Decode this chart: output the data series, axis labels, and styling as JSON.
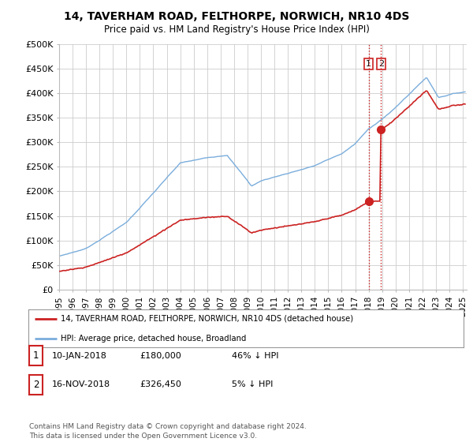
{
  "title": "14, TAVERHAM ROAD, FELTHORPE, NORWICH, NR10 4DS",
  "subtitle": "Price paid vs. HM Land Registry's House Price Index (HPI)",
  "ylabel_ticks": [
    "£0",
    "£50K",
    "£100K",
    "£150K",
    "£200K",
    "£250K",
    "£300K",
    "£350K",
    "£400K",
    "£450K",
    "£500K"
  ],
  "ytick_values": [
    0,
    50000,
    100000,
    150000,
    200000,
    250000,
    300000,
    350000,
    400000,
    450000,
    500000
  ],
  "ylim": [
    0,
    500000
  ],
  "xlim_start": 1995.0,
  "xlim_end": 2025.3,
  "hpi_color": "#7aaddc",
  "price_color": "#cc2222",
  "dashed_line_color": "#cc2222",
  "point1_date": 2018.03,
  "point1_price": 180000,
  "point2_date": 2018.88,
  "point2_price": 326450,
  "legend_label1": "14, TAVERHAM ROAD, FELTHORPE, NORWICH, NR10 4DS (detached house)",
  "legend_label2": "HPI: Average price, detached house, Broadland",
  "table_row1": [
    "1",
    "10-JAN-2018",
    "£180,000",
    "46% ↓ HPI"
  ],
  "table_row2": [
    "2",
    "16-NOV-2018",
    "£326,450",
    "5% ↓ HPI"
  ],
  "footnote": "Contains HM Land Registry data © Crown copyright and database right 2024.\nThis data is licensed under the Open Government Licence v3.0.",
  "background_color": "#ffffff",
  "grid_color": "#cccccc"
}
